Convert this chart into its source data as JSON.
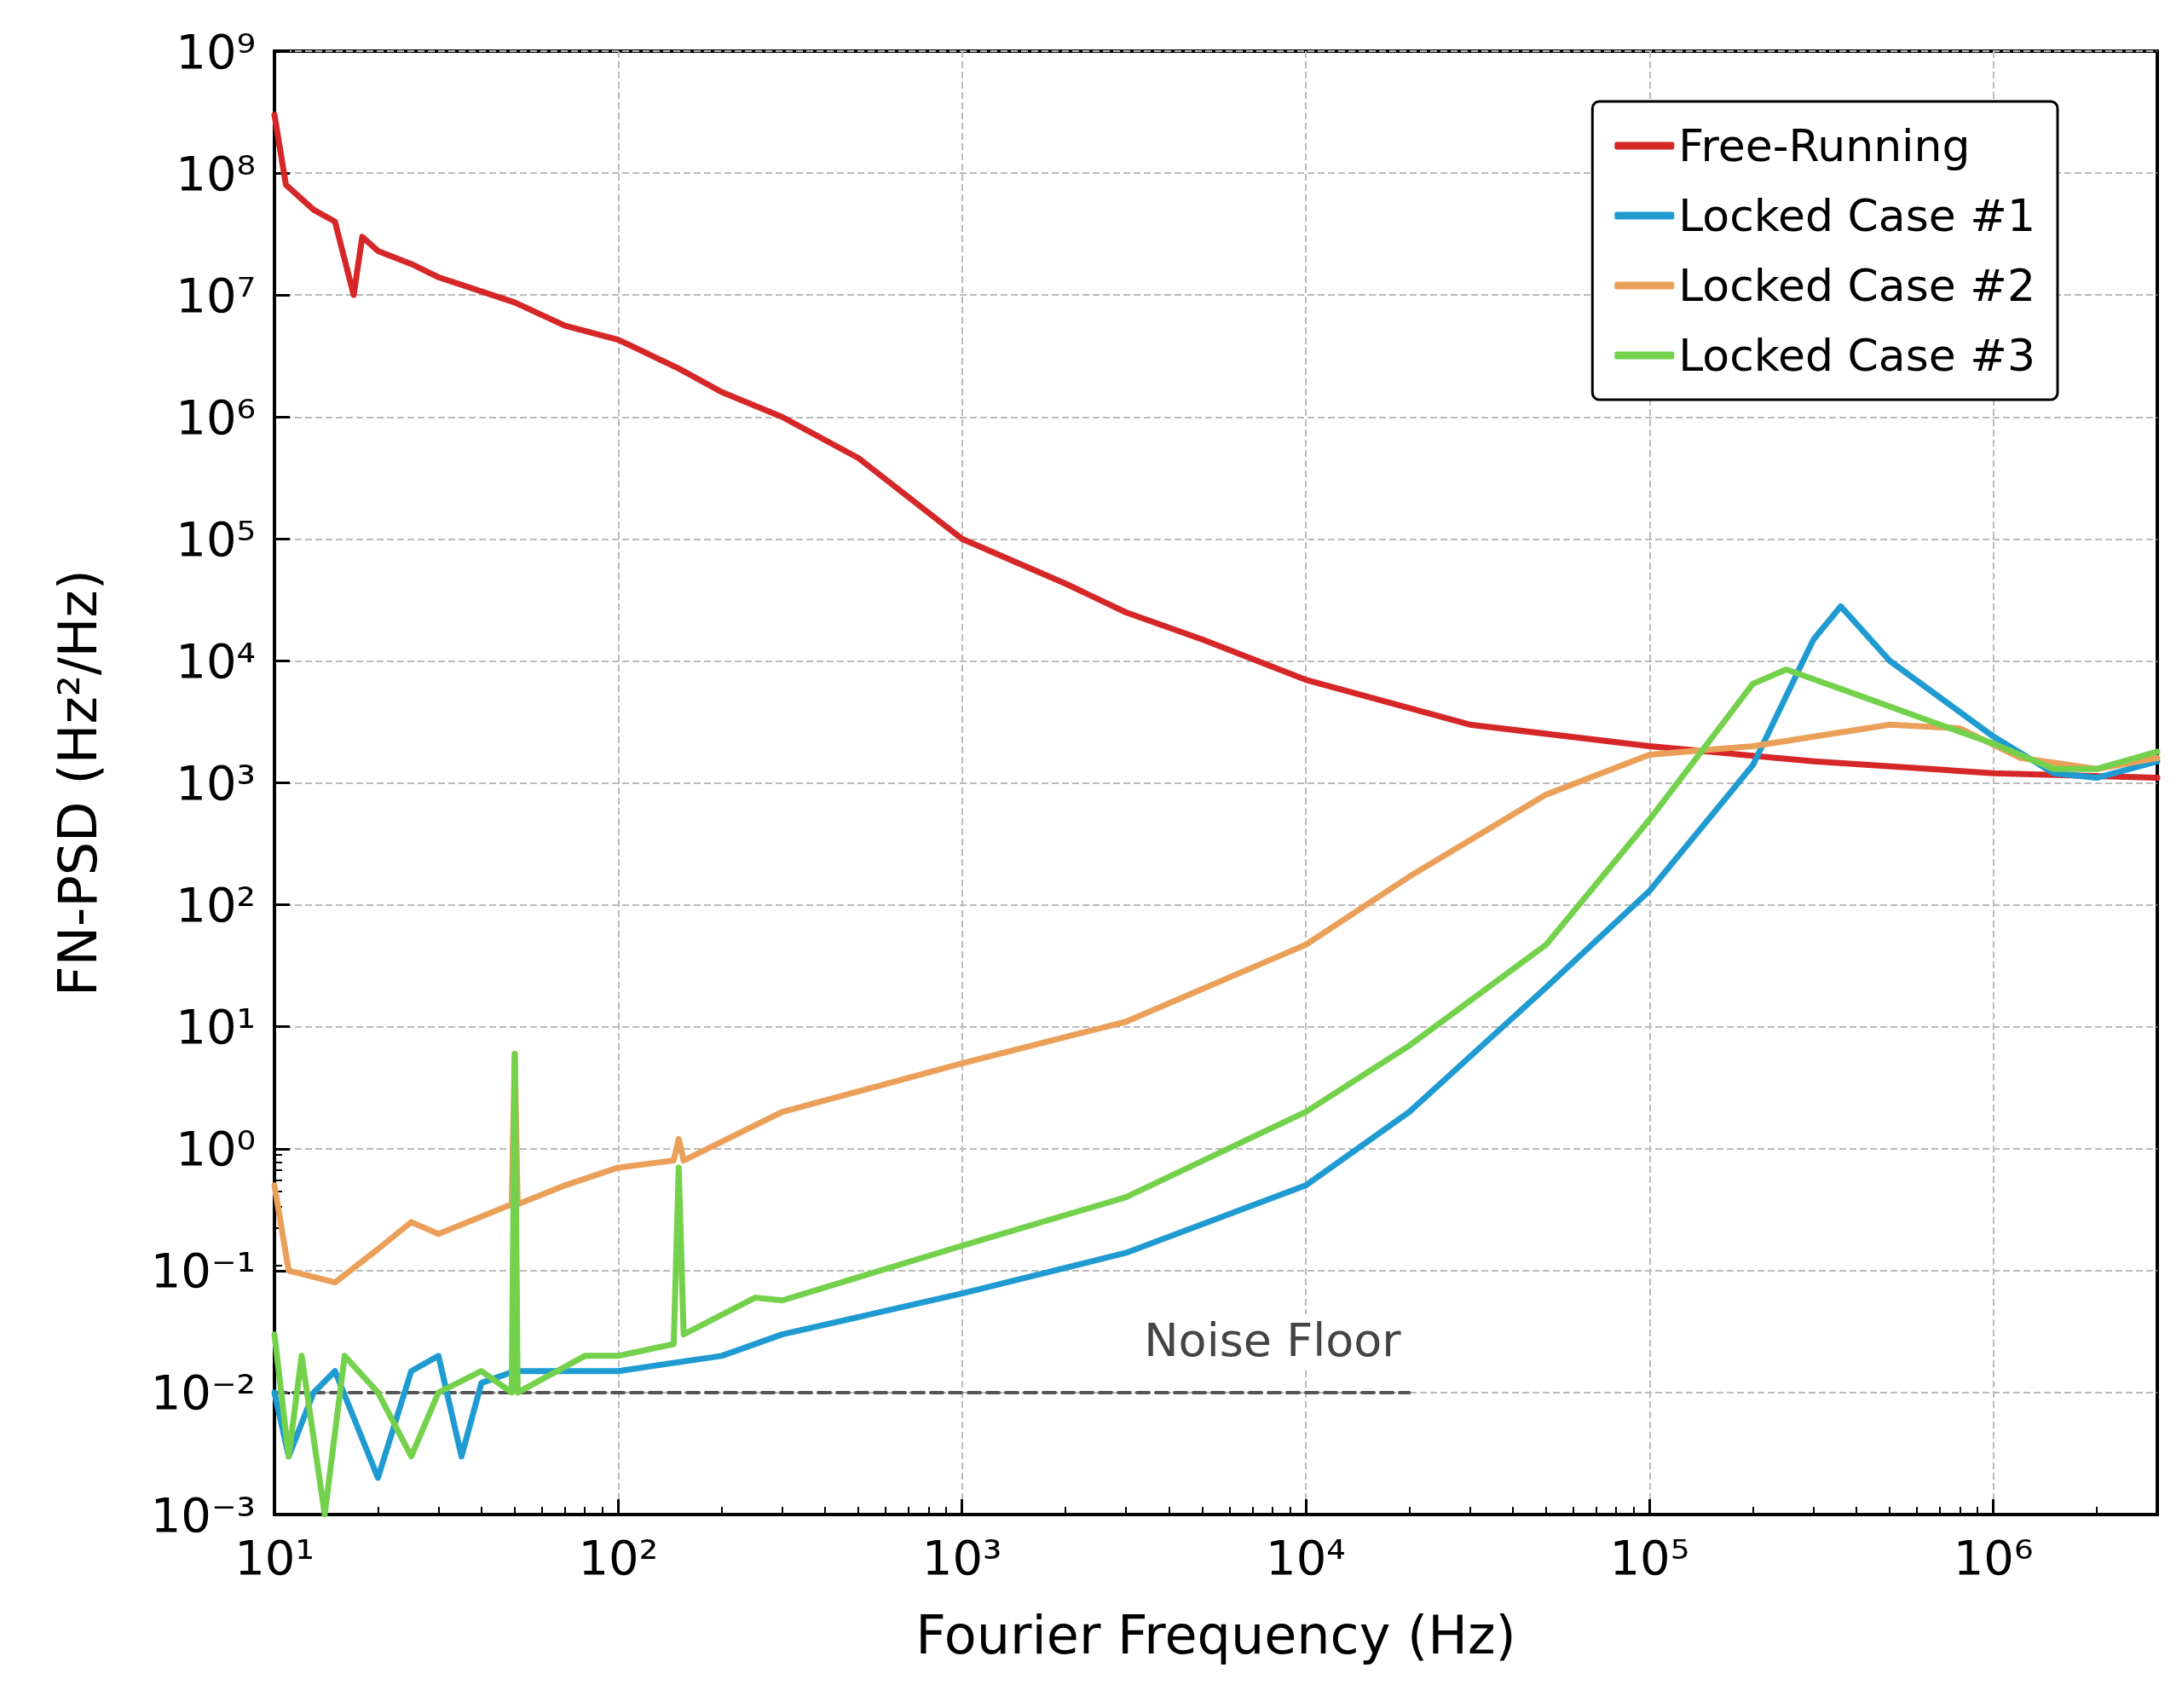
{
  "chart_data": {
    "type": "line",
    "xlabel": "Fourier Frequency (Hz)",
    "ylabel": "FN-PSD (Hz²/Hz)",
    "log": "xy",
    "xlim": [
      10,
      3000000
    ],
    "ylim": [
      0.001,
      1000000000
    ],
    "xticks": [
      {
        "value": 10,
        "label": "10¹"
      },
      {
        "value": 100,
        "label": "10²"
      },
      {
        "value": 1000,
        "label": "10³"
      },
      {
        "value": 10000,
        "label": "10⁴"
      },
      {
        "value": 100000,
        "label": "10⁵"
      },
      {
        "value": 1000000,
        "label": "10⁶"
      }
    ],
    "yticks": [
      {
        "value": 0.001,
        "label": "10⁻³"
      },
      {
        "value": 0.01,
        "label": "10⁻²"
      },
      {
        "value": 0.1,
        "label": "10⁻¹"
      },
      {
        "value": 1,
        "label": "10⁰"
      },
      {
        "value": 10,
        "label": "10¹"
      },
      {
        "value": 100,
        "label": "10²"
      },
      {
        "value": 1000,
        "label": "10³"
      },
      {
        "value": 10000,
        "label": "10⁴"
      },
      {
        "value": 100000,
        "label": "10⁵"
      },
      {
        "value": 1000000,
        "label": "10⁶"
      },
      {
        "value": 10000000,
        "label": "10⁷"
      },
      {
        "value": 100000000,
        "label": "10⁸"
      },
      {
        "value": 1000000000,
        "label": "10⁹"
      }
    ],
    "grid": true,
    "legend": "top right",
    "marker": "none",
    "line_style": "solid",
    "annotations": [
      {
        "text": "Noise Floor",
        "x": 8000,
        "y": 0.01
      }
    ],
    "series": [
      {
        "name": "Free-Running",
        "color": "#d62728",
        "x": [
          10,
          10.8,
          13,
          15,
          17,
          18,
          20,
          25,
          30,
          50,
          70,
          100,
          150,
          200,
          300,
          500,
          1000,
          2000,
          3000,
          5000,
          10000,
          30000,
          100000,
          300000,
          1000000,
          3000000
        ],
        "values": [
          300000000,
          80000000,
          50000000,
          40000000,
          10000000,
          30000000,
          23000000,
          18000000,
          14000000,
          8700000,
          5600000,
          4300000,
          2500000,
          1600000,
          1000000,
          460000,
          100000,
          43000,
          25000,
          15000,
          7000,
          3000,
          2000,
          1500,
          1200,
          1100
        ]
      },
      {
        "name": "Locked Case #1",
        "color": "#1f9bd1",
        "x": [
          10,
          11,
          13,
          15,
          20,
          25,
          30,
          35,
          40,
          50,
          100,
          200,
          300,
          1000,
          3000,
          10000,
          20000,
          50000,
          100000,
          200000,
          300000,
          360000,
          500000,
          1000000,
          1500000,
          2000000,
          3000000
        ],
        "values": [
          0.01,
          0.003,
          0.01,
          0.015,
          0.002,
          0.015,
          0.02,
          0.003,
          0.012,
          0.015,
          0.015,
          0.02,
          0.03,
          0.065,
          0.14,
          0.5,
          2,
          21,
          130,
          1400,
          15000,
          28000,
          10000,
          2400,
          1200,
          1100,
          1500
        ]
      },
      {
        "name": "Locked Case #2",
        "color": "#eba05a",
        "x": [
          10,
          11,
          15,
          20,
          25,
          30,
          49,
          50,
          51,
          70,
          100,
          145,
          150,
          155,
          300,
          1000,
          3000,
          10000,
          20000,
          50000,
          100000,
          200000,
          500000,
          800000,
          1200000,
          2000000,
          3000000
        ],
        "values": [
          0.5,
          0.1,
          0.08,
          0.15,
          0.25,
          0.2,
          0.35,
          6,
          0.35,
          0.5,
          0.7,
          0.8,
          1.2,
          0.8,
          2,
          5,
          11,
          47,
          170,
          800,
          1700,
          2000,
          3000,
          2800,
          1600,
          1300,
          1600
        ]
      },
      {
        "name": "Locked Case #3",
        "color": "#74d14c",
        "x": [
          10,
          11,
          12,
          14,
          16,
          20,
          25,
          30,
          40,
          49,
          50,
          51,
          80,
          100,
          145,
          150,
          155,
          250,
          300,
          1000,
          3000,
          10000,
          20000,
          50000,
          100000,
          200000,
          250000,
          400000,
          700000,
          1000000,
          1500000,
          2000000,
          3000000
        ],
        "values": [
          0.03,
          0.003,
          0.02,
          0.001,
          0.02,
          0.01,
          0.003,
          0.01,
          0.015,
          0.01,
          6,
          0.01,
          0.02,
          0.02,
          0.025,
          0.7,
          0.03,
          0.06,
          0.057,
          0.16,
          0.4,
          2,
          7,
          47,
          500,
          6500,
          8500,
          5300,
          3000,
          2100,
          1300,
          1300,
          1800
        ]
      },
      {
        "color": "#555555",
        "line_style": "dashed",
        "x": [
          10,
          20000
        ],
        "values": [
          0.01,
          0.01
        ]
      }
    ]
  }
}
